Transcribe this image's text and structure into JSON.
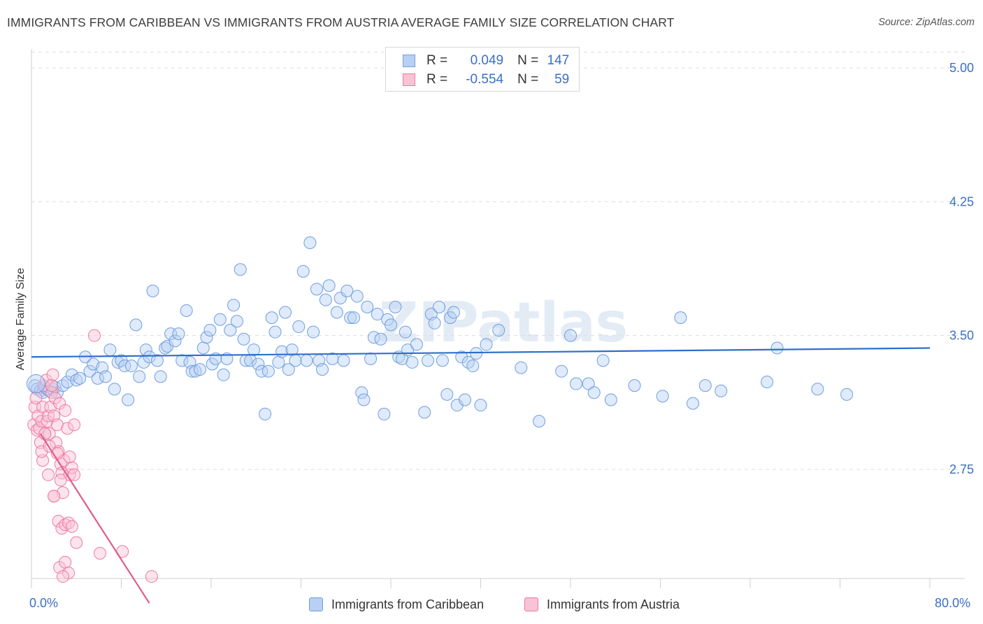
{
  "title": "IMMIGRANTS FROM CARIBBEAN VS IMMIGRANTS FROM AUSTRIA AVERAGE FAMILY SIZE CORRELATION CHART",
  "source": "Source: ZipAtlas.com",
  "watermark": "ZIPatlas",
  "legend": {
    "rows": [
      {
        "r_label": "R =",
        "r_value": "0.049",
        "n_label": "N =",
        "n_value": "147"
      },
      {
        "r_label": "R =",
        "r_value": "-0.554",
        "n_label": "N =",
        "n_value": "59"
      }
    ]
  },
  "x_min_label": "0.0%",
  "x_max_label": "80.0%",
  "colors": {
    "blue": "#6f9fe0",
    "blue_fill": "#b8d0f3",
    "blue_line": "#2d6fcc",
    "pink": "#f07aa2",
    "pink_fill": "#f8c3d5",
    "pink_line": "#e05c8c",
    "axis_text": "#3a6fc7",
    "grid": "#dddddd"
  },
  "chart_data": {
    "type": "scatter",
    "title": "IMMIGRANTS FROM CARIBBEAN VS IMMIGRANTS FROM AUSTRIA AVERAGE FAMILY SIZE CORRELATION CHART",
    "xlabel": "",
    "ylabel": "Average Family Size",
    "xlim": [
      0,
      80
    ],
    "ylim": [
      2.0,
      5.1
    ],
    "y_ticks": [
      2.75,
      3.5,
      4.25,
      5.0
    ],
    "y_tick_labels": [
      "2.75",
      "3.50",
      "4.25",
      "5.00"
    ],
    "x_ticks": [
      0,
      8,
      16,
      24,
      32,
      40,
      48,
      56,
      64,
      72,
      80
    ],
    "x_tick_labels": [
      "0.0%",
      "80.0%"
    ],
    "grid": true,
    "legend_position": "top-center",
    "series": [
      {
        "name": "Immigrants from Caribbean",
        "color": "#6f9fe0",
        "trend": {
          "x": [
            0,
            80
          ],
          "y": [
            3.38,
            3.43
          ]
        },
        "points": [
          [
            0.3,
            3.22
          ],
          [
            0.5,
            3.2
          ],
          [
            0.8,
            3.19
          ],
          [
            1.0,
            3.18
          ],
          [
            1.2,
            3.21
          ],
          [
            1.4,
            3.2
          ],
          [
            1.6,
            3.19
          ],
          [
            1.9,
            3.2
          ],
          [
            2.1,
            3.21
          ],
          [
            2.3,
            3.18
          ],
          [
            2.8,
            3.22
          ],
          [
            3.2,
            3.24
          ],
          [
            3.6,
            3.28
          ],
          [
            4.0,
            3.25
          ],
          [
            4.3,
            3.26
          ],
          [
            4.8,
            3.38
          ],
          [
            5.2,
            3.3
          ],
          [
            5.5,
            3.34
          ],
          [
            5.9,
            3.26
          ],
          [
            6.3,
            3.32
          ],
          [
            6.6,
            3.27
          ],
          [
            7.0,
            3.42
          ],
          [
            7.4,
            3.2
          ],
          [
            7.7,
            3.35
          ],
          [
            8.0,
            3.36
          ],
          [
            8.3,
            3.33
          ],
          [
            8.6,
            3.14
          ],
          [
            8.9,
            3.33
          ],
          [
            9.3,
            3.56
          ],
          [
            9.6,
            3.27
          ],
          [
            10.0,
            3.35
          ],
          [
            10.2,
            3.42
          ],
          [
            10.5,
            3.38
          ],
          [
            10.8,
            3.75
          ],
          [
            11.2,
            3.36
          ],
          [
            11.5,
            3.27
          ],
          [
            11.9,
            3.43
          ],
          [
            12.1,
            3.44
          ],
          [
            12.4,
            3.51
          ],
          [
            12.8,
            3.47
          ],
          [
            13.1,
            3.51
          ],
          [
            13.4,
            3.36
          ],
          [
            13.8,
            3.64
          ],
          [
            14.1,
            3.35
          ],
          [
            14.3,
            3.3
          ],
          [
            14.6,
            3.3
          ],
          [
            15.0,
            3.31
          ],
          [
            15.3,
            3.43
          ],
          [
            15.6,
            3.49
          ],
          [
            15.9,
            3.53
          ],
          [
            16.1,
            3.34
          ],
          [
            16.4,
            3.37
          ],
          [
            16.8,
            3.59
          ],
          [
            17.1,
            3.28
          ],
          [
            17.4,
            3.37
          ],
          [
            17.7,
            3.53
          ],
          [
            18.0,
            3.67
          ],
          [
            18.3,
            3.58
          ],
          [
            18.6,
            3.87
          ],
          [
            18.9,
            3.48
          ],
          [
            19.1,
            3.36
          ],
          [
            19.5,
            3.36
          ],
          [
            19.8,
            3.42
          ],
          [
            20.2,
            3.34
          ],
          [
            20.5,
            3.3
          ],
          [
            20.8,
            3.06
          ],
          [
            21.1,
            3.3
          ],
          [
            21.4,
            3.6
          ],
          [
            21.7,
            3.52
          ],
          [
            22.0,
            3.35
          ],
          [
            22.3,
            3.41
          ],
          [
            22.6,
            3.63
          ],
          [
            22.9,
            3.31
          ],
          [
            23.2,
            3.42
          ],
          [
            23.5,
            3.36
          ],
          [
            23.8,
            3.55
          ],
          [
            24.2,
            3.86
          ],
          [
            24.5,
            3.36
          ],
          [
            24.8,
            4.02
          ],
          [
            25.1,
            3.52
          ],
          [
            25.4,
            3.76
          ],
          [
            25.6,
            3.36
          ],
          [
            25.9,
            3.31
          ],
          [
            26.2,
            3.7
          ],
          [
            26.5,
            3.78
          ],
          [
            26.8,
            3.37
          ],
          [
            27.2,
            3.63
          ],
          [
            27.5,
            3.71
          ],
          [
            27.8,
            3.36
          ],
          [
            28.1,
            3.75
          ],
          [
            28.4,
            3.6
          ],
          [
            28.7,
            3.6
          ],
          [
            29.0,
            3.72
          ],
          [
            29.4,
            3.18
          ],
          [
            29.6,
            3.14
          ],
          [
            29.9,
            3.66
          ],
          [
            30.2,
            3.37
          ],
          [
            30.5,
            3.49
          ],
          [
            30.8,
            3.62
          ],
          [
            31.1,
            3.48
          ],
          [
            31.4,
            3.06
          ],
          [
            31.7,
            3.59
          ],
          [
            32.0,
            3.56
          ],
          [
            32.4,
            3.66
          ],
          [
            32.7,
            3.38
          ],
          [
            33.0,
            3.37
          ],
          [
            33.3,
            3.52
          ],
          [
            33.5,
            3.42
          ],
          [
            33.9,
            3.35
          ],
          [
            34.3,
            3.45
          ],
          [
            35.0,
            3.07
          ],
          [
            35.3,
            3.36
          ],
          [
            35.6,
            3.62
          ],
          [
            35.9,
            3.57
          ],
          [
            36.3,
            3.66
          ],
          [
            36.6,
            3.36
          ],
          [
            37.0,
            3.17
          ],
          [
            37.3,
            3.6
          ],
          [
            37.6,
            3.63
          ],
          [
            37.9,
            3.11
          ],
          [
            38.3,
            3.38
          ],
          [
            38.6,
            3.14
          ],
          [
            38.9,
            3.35
          ],
          [
            39.3,
            3.33
          ],
          [
            39.6,
            3.4
          ],
          [
            40.0,
            3.11
          ],
          [
            40.5,
            3.45
          ],
          [
            41.6,
            3.53
          ],
          [
            43.6,
            3.32
          ],
          [
            45.2,
            3.02
          ],
          [
            47.2,
            3.3
          ],
          [
            48.0,
            3.5
          ],
          [
            48.5,
            3.23
          ],
          [
            49.6,
            3.23
          ],
          [
            50.1,
            3.18
          ],
          [
            51.6,
            3.14
          ],
          [
            53.7,
            3.22
          ],
          [
            56.2,
            3.16
          ],
          [
            57.8,
            3.6
          ],
          [
            58.9,
            3.12
          ],
          [
            60.0,
            3.22
          ],
          [
            61.4,
            3.19
          ],
          [
            65.5,
            3.24
          ],
          [
            66.4,
            3.43
          ],
          [
            70.0,
            3.2
          ],
          [
            72.6,
            3.17
          ],
          [
            50.9,
            3.36
          ]
        ]
      },
      {
        "name": "Immigrants from Austria",
        "color": "#f07aa2",
        "trend": {
          "x": [
            0.8,
            10.5
          ],
          "y": [
            2.95,
            2.0
          ]
        },
        "points": [
          [
            0.2,
            3.0
          ],
          [
            0.3,
            3.1
          ],
          [
            0.4,
            3.15
          ],
          [
            0.5,
            2.97
          ],
          [
            0.6,
            3.05
          ],
          [
            0.7,
            2.98
          ],
          [
            0.8,
            2.9
          ],
          [
            0.9,
            3.02
          ],
          [
            1.0,
            3.1
          ],
          [
            1.1,
            3.22
          ],
          [
            1.2,
            2.95
          ],
          [
            1.3,
            3.25
          ],
          [
            1.4,
            3.02
          ],
          [
            1.5,
            3.05
          ],
          [
            1.6,
            2.95
          ],
          [
            1.7,
            3.1
          ],
          [
            1.8,
            3.18
          ],
          [
            1.9,
            3.28
          ],
          [
            2.0,
            3.05
          ],
          [
            2.1,
            3.15
          ],
          [
            2.2,
            2.9
          ],
          [
            2.3,
            3.0
          ],
          [
            2.4,
            2.85
          ],
          [
            2.5,
            3.12
          ],
          [
            2.6,
            2.78
          ],
          [
            2.7,
            2.73
          ],
          [
            2.8,
            2.62
          ],
          [
            2.9,
            2.8
          ],
          [
            3.0,
            3.08
          ],
          [
            3.2,
            2.98
          ],
          [
            3.4,
            2.72
          ],
          [
            3.6,
            2.76
          ],
          [
            3.8,
            2.72
          ],
          [
            1.0,
            2.8
          ],
          [
            1.5,
            2.72
          ],
          [
            2.0,
            2.6
          ],
          [
            2.4,
            2.46
          ],
          [
            2.7,
            2.42
          ],
          [
            3.0,
            2.44
          ],
          [
            3.3,
            2.45
          ],
          [
            3.6,
            2.43
          ],
          [
            2.5,
            2.2
          ],
          [
            3.0,
            2.23
          ],
          [
            3.3,
            2.17
          ],
          [
            2.8,
            2.15
          ],
          [
            4.0,
            2.34
          ],
          [
            2.0,
            2.6
          ],
          [
            1.2,
            2.95
          ],
          [
            0.9,
            2.85
          ],
          [
            1.6,
            2.88
          ],
          [
            1.8,
            3.22
          ],
          [
            2.3,
            2.84
          ],
          [
            3.4,
            2.82
          ],
          [
            5.6,
            3.5
          ],
          [
            6.1,
            2.28
          ],
          [
            8.1,
            2.29
          ],
          [
            10.7,
            2.15
          ],
          [
            2.6,
            2.69
          ],
          [
            3.8,
            3.0
          ]
        ]
      }
    ]
  },
  "bottom_legend": [
    {
      "label": "Immigrants from Caribbean"
    },
    {
      "label": "Immigrants from Austria"
    }
  ]
}
